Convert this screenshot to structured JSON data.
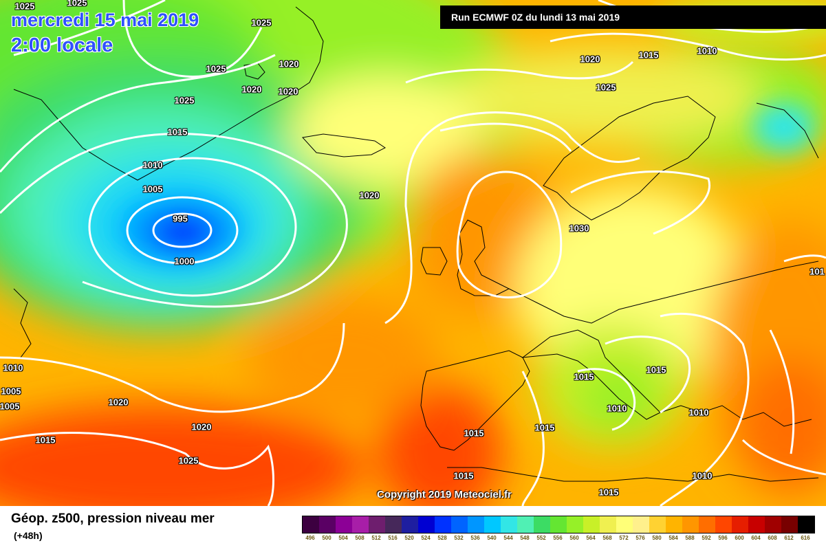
{
  "header": {
    "date_line": "mercredi 15 mai 2019",
    "time_line": "2:00 locale",
    "run_info": "Run ECMWF 0Z du lundi 13 mai 2019"
  },
  "copyright": "Copyright 2019 Meteociel.fr",
  "legend": {
    "title": "Géop. z500, pression niveau mer",
    "subtitle": "(+48h)",
    "levels": [
      "496",
      "500",
      "504",
      "508",
      "512",
      "516",
      "520",
      "524",
      "528",
      "532",
      "536",
      "540",
      "544",
      "548",
      "552",
      "556",
      "560",
      "564",
      "568",
      "572",
      "576",
      "580",
      "584",
      "588",
      "592",
      "596",
      "600",
      "604",
      "608",
      "612",
      "616"
    ],
    "colors": [
      "#3c0040",
      "#5a0064",
      "#8c0096",
      "#a81ea8",
      "#6e1e6e",
      "#46285a",
      "#1e1ea0",
      "#0000d2",
      "#0032ff",
      "#0064ff",
      "#0096ff",
      "#00c8ff",
      "#32e6e6",
      "#50f0b4",
      "#3cdc64",
      "#64e632",
      "#96f028",
      "#c8f028",
      "#f0f050",
      "#ffff78",
      "#fff08c",
      "#ffd232",
      "#ffb400",
      "#ff9600",
      "#ff6e00",
      "#ff4600",
      "#e61e00",
      "#c80000",
      "#a00000",
      "#780000",
      "#000000"
    ]
  },
  "isobar_labels": [
    {
      "value": "1025",
      "id": "l1"
    },
    {
      "value": "1025",
      "id": "l2"
    },
    {
      "value": "1025",
      "id": "l3"
    },
    {
      "value": "1025",
      "id": "l4"
    },
    {
      "value": "1020",
      "id": "l5"
    },
    {
      "value": "1020",
      "id": "l6"
    },
    {
      "value": "1020",
      "id": "l7"
    },
    {
      "value": "1025",
      "id": "l8"
    },
    {
      "value": "1015",
      "id": "l9"
    },
    {
      "value": "1010",
      "id": "l10"
    },
    {
      "value": "1005",
      "id": "l11"
    },
    {
      "value": "995",
      "id": "l12"
    },
    {
      "value": "1000",
      "id": "l13"
    },
    {
      "value": "1020",
      "id": "l14"
    },
    {
      "value": "1020",
      "id": "l15"
    },
    {
      "value": "1015",
      "id": "l16"
    },
    {
      "value": "1010",
      "id": "l17"
    },
    {
      "value": "1025",
      "id": "l18"
    },
    {
      "value": "1030",
      "id": "l19"
    },
    {
      "value": "1010",
      "id": "l20"
    },
    {
      "value": "1005",
      "id": "l21"
    },
    {
      "value": "1005",
      "id": "l22"
    },
    {
      "value": "1020",
      "id": "l23"
    },
    {
      "value": "1020",
      "id": "l24"
    },
    {
      "value": "1015",
      "id": "l25"
    },
    {
      "value": "1025",
      "id": "l26"
    },
    {
      "value": "1015",
      "id": "l27"
    },
    {
      "value": "1015",
      "id": "l28"
    },
    {
      "value": "1010",
      "id": "l29"
    },
    {
      "value": "1015",
      "id": "l30"
    },
    {
      "value": "1015",
      "id": "l31"
    },
    {
      "value": "1010",
      "id": "l32"
    },
    {
      "value": "1015",
      "id": "l33"
    },
    {
      "value": "1010",
      "id": "l34"
    },
    {
      "value": "1015",
      "id": "l35"
    },
    {
      "value": "101",
      "id": "l36"
    }
  ]
}
